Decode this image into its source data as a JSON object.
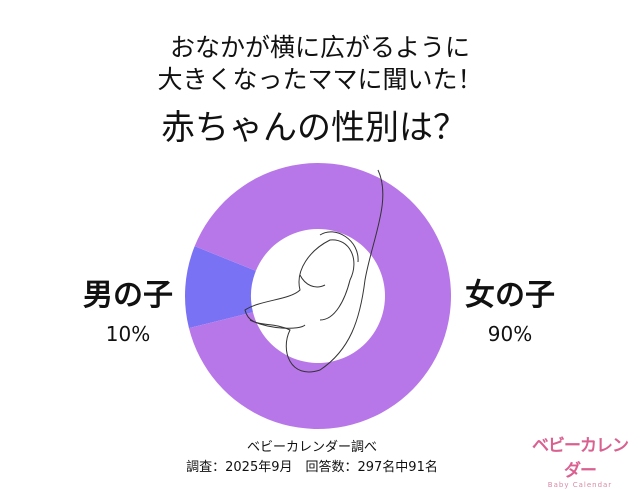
{
  "title": {
    "line1": "おなかが横に広がるように",
    "line2": "大きくなったママに聞いた！",
    "line3": "赤ちゃんの性別は？"
  },
  "chart_data": {
    "type": "pie",
    "donut": true,
    "categories": [
      "男の子",
      "女の子"
    ],
    "values": [
      10,
      90
    ],
    "value_labels": [
      "10%",
      "90%"
    ],
    "colors": [
      "#7a72f5",
      "#b877e8"
    ]
  },
  "footer": {
    "source": "ベビーカレンダー調べ",
    "details": "調査：2025年9月　回答数：297名中91名"
  },
  "logo": {
    "jp": "ベビーカレンダー",
    "en": "Baby Calendar"
  }
}
